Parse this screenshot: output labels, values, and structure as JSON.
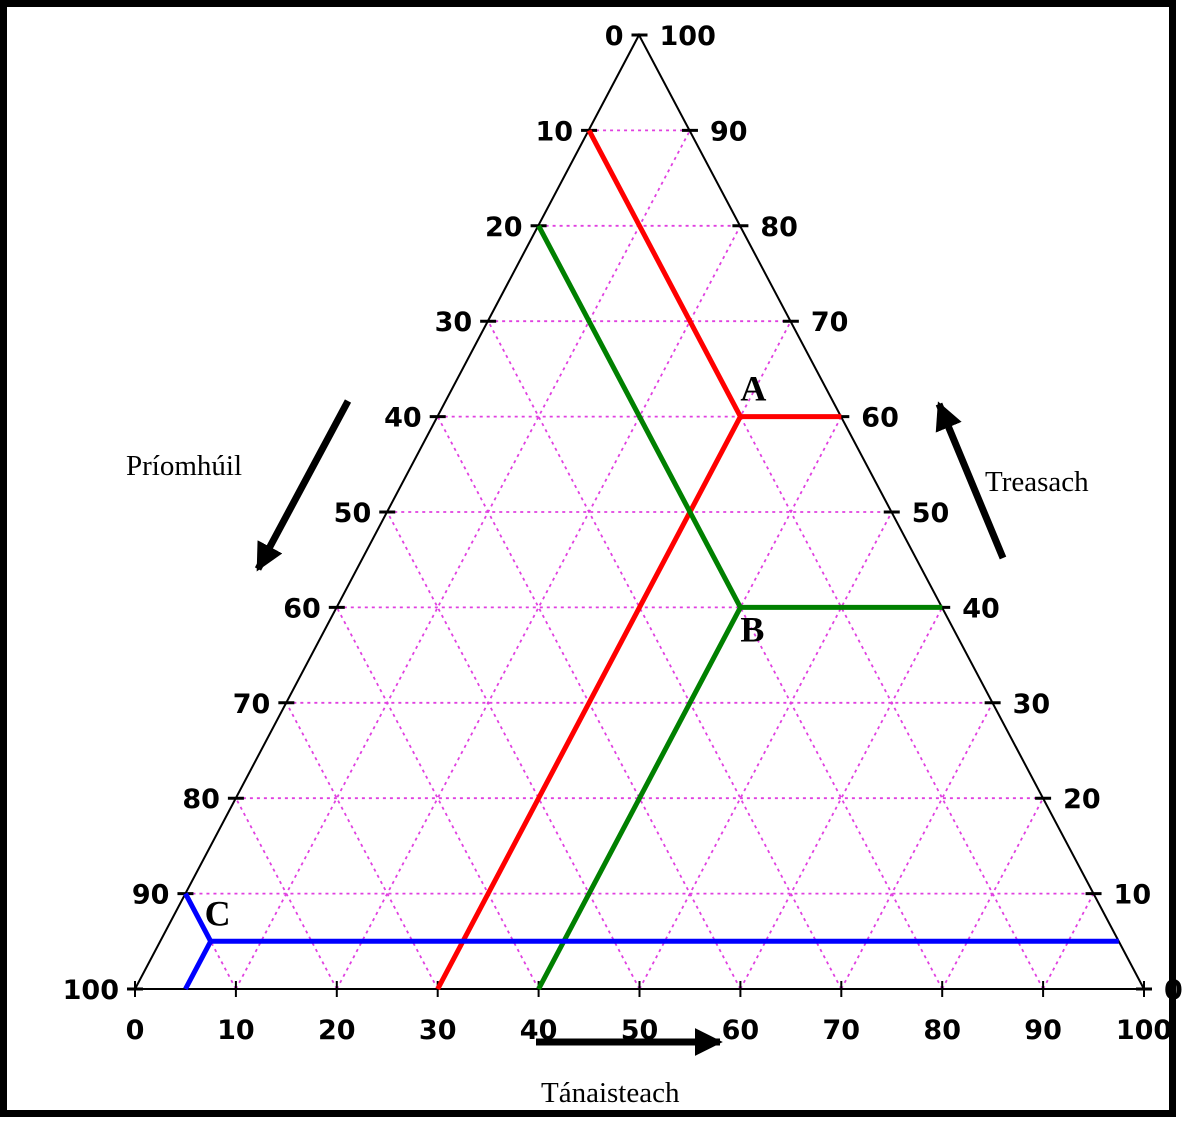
{
  "diagram": {
    "axes": {
      "left": {
        "label": "Príomhúil",
        "ticks": [
          "0",
          "10",
          "20",
          "30",
          "40",
          "50",
          "60",
          "70",
          "80",
          "90",
          "100"
        ]
      },
      "right": {
        "label": "Treasach",
        "ticks": [
          "100",
          "90",
          "80",
          "70",
          "60",
          "50",
          "40",
          "30",
          "20",
          "10",
          "0"
        ]
      },
      "bottom": {
        "label": "Tánaisteach",
        "ticks": [
          "0",
          "10",
          "20",
          "30",
          "40",
          "50",
          "60",
          "70",
          "80",
          "90",
          "100"
        ]
      }
    },
    "grid": {
      "step": 10,
      "style": "dotted",
      "color": "#e040e0"
    },
    "points": [
      {
        "label": "A",
        "primary": 10,
        "secondary": 30,
        "tertiary": 60,
        "color": "#ff0000"
      },
      {
        "label": "B",
        "primary": 20,
        "secondary": 40,
        "tertiary": 40,
        "color": "#008000"
      },
      {
        "label": "C",
        "primary": 90,
        "secondary": 5,
        "tertiary": 5,
        "color": "#0000ff"
      }
    ]
  }
}
